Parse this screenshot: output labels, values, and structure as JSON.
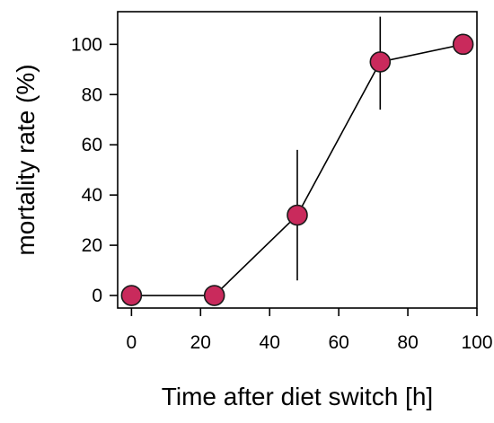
{
  "chart_data": {
    "type": "scatter",
    "title": "",
    "xlabel": "Time after diet switch [h]",
    "ylabel": "mortality rate (%)",
    "xlim": [
      -4,
      100
    ],
    "ylim": [
      -5,
      113
    ],
    "x_ticks": [
      0,
      20,
      40,
      60,
      80,
      100
    ],
    "y_ticks": [
      0,
      20,
      40,
      60,
      80,
      100
    ],
    "grid": false,
    "point_color": "#c92a5c",
    "series": [
      {
        "x": [
          0,
          24,
          48,
          72,
          96
        ],
        "y": [
          0,
          0,
          32,
          93,
          100
        ],
        "err_low": [
          0,
          0,
          6,
          74,
          100
        ],
        "err_high": [
          0,
          0,
          58,
          111,
          100
        ]
      }
    ]
  }
}
